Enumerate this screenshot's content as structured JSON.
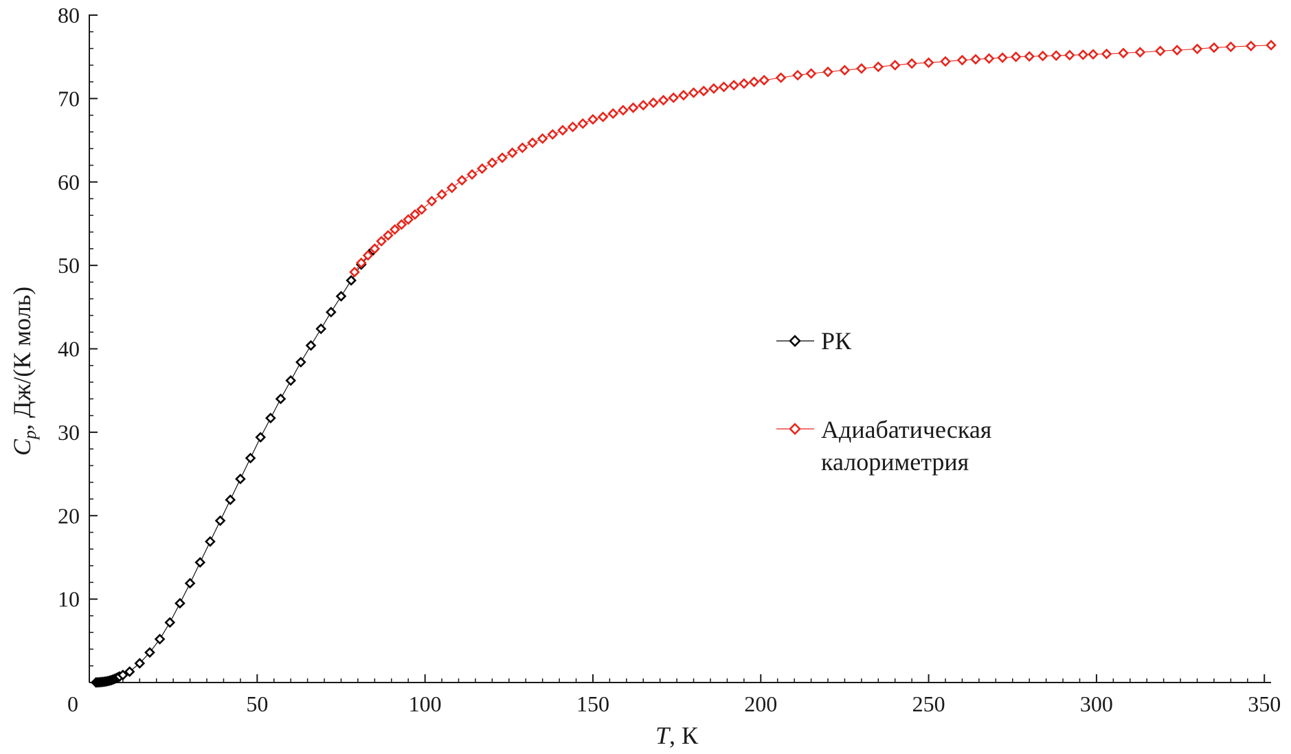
{
  "chart_data": {
    "type": "scatter",
    "title": "",
    "xlabel": {
      "var": "T",
      "rest": ", К"
    },
    "ylabel": {
      "var": "C",
      "sub": "p",
      "rest": ", Дж/(К моль)"
    },
    "xlim": [
      0,
      352
    ],
    "ylim": [
      0,
      80
    ],
    "xticks": [
      0,
      50,
      100,
      150,
      200,
      250,
      300,
      350
    ],
    "yticks": [
      10,
      20,
      30,
      40,
      50,
      60,
      70,
      80
    ],
    "x_tick_labels": [
      "0",
      "50",
      "100",
      "150",
      "200",
      "250",
      "300",
      "350"
    ],
    "y_tick_labels": [
      "10",
      "20",
      "30",
      "40",
      "50",
      "60",
      "70",
      "80"
    ],
    "grid": false,
    "legend_placement": "center-right",
    "series": [
      {
        "name": "РК",
        "color": "#000000",
        "marker": "diamond-open",
        "x": [
          2,
          2.5,
          3,
          3.5,
          4,
          4.5,
          5,
          5.5,
          6,
          6.5,
          7,
          7.5,
          8,
          8.5,
          9,
          10,
          12,
          15,
          18,
          21,
          24,
          27,
          30,
          33,
          36,
          39,
          42,
          45,
          48,
          51,
          54,
          57,
          60,
          63,
          66,
          69,
          72,
          75,
          78,
          81,
          84.5
        ],
        "y": [
          0.01,
          0.02,
          0.03,
          0.05,
          0.07,
          0.1,
          0.13,
          0.17,
          0.22,
          0.28,
          0.35,
          0.43,
          0.52,
          0.62,
          0.72,
          0.9,
          1.3,
          2.3,
          3.6,
          5.2,
          7.2,
          9.5,
          11.9,
          14.4,
          16.9,
          19.4,
          21.9,
          24.4,
          26.9,
          29.4,
          31.7,
          34.0,
          36.2,
          38.4,
          40.4,
          42.4,
          44.4,
          46.3,
          48.2,
          50.1,
          51.8
        ]
      },
      {
        "name": "Адиабатическая калориметрия",
        "color": "#e8251c",
        "marker": "diamond-open",
        "x": [
          79,
          81,
          83,
          85,
          87,
          89,
          91,
          93,
          95,
          97,
          99,
          102,
          105,
          108,
          111,
          114,
          117,
          120,
          123,
          126,
          129,
          132,
          135,
          138,
          141,
          144,
          147,
          150,
          153,
          156,
          159,
          162,
          165,
          168,
          171,
          174,
          177,
          180,
          183,
          186,
          189,
          192,
          195,
          198,
          201,
          206,
          211,
          215,
          220,
          225,
          230,
          235,
          240,
          245,
          250,
          255,
          260,
          264,
          268,
          272,
          276,
          280,
          284,
          288,
          292,
          296,
          299,
          303,
          308,
          313,
          319,
          324,
          330,
          335,
          340,
          346,
          352
        ],
        "y": [
          49.2,
          50.3,
          51.2,
          52.0,
          52.9,
          53.6,
          54.3,
          54.9,
          55.5,
          56.1,
          56.7,
          57.7,
          58.5,
          59.3,
          60.2,
          60.9,
          61.6,
          62.3,
          62.9,
          63.5,
          64.1,
          64.7,
          65.2,
          65.7,
          66.2,
          66.6,
          67.0,
          67.5,
          67.8,
          68.2,
          68.6,
          68.9,
          69.2,
          69.5,
          69.8,
          70.1,
          70.4,
          70.7,
          70.9,
          71.2,
          71.4,
          71.6,
          71.8,
          72.0,
          72.2,
          72.5,
          72.8,
          73.0,
          73.2,
          73.4,
          73.6,
          73.8,
          74.0,
          74.2,
          74.3,
          74.45,
          74.6,
          74.7,
          74.8,
          74.9,
          75.0,
          75.05,
          75.1,
          75.15,
          75.2,
          75.25,
          75.3,
          75.35,
          75.45,
          75.55,
          75.7,
          75.8,
          75.95,
          76.1,
          76.2,
          76.3,
          76.4
        ]
      }
    ]
  }
}
